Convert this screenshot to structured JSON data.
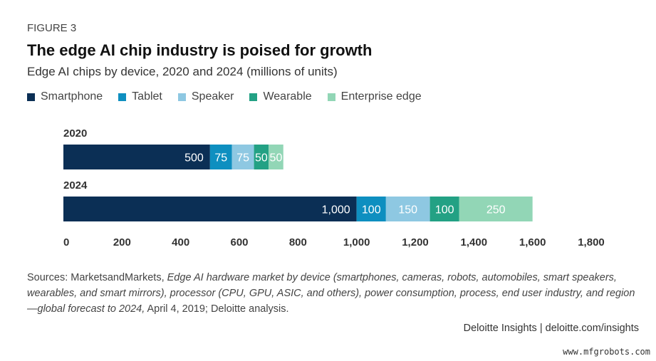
{
  "figure_label": "FIGURE 3",
  "watermark": "www.mfgrobots.com",
  "chart_data": {
    "type": "bar",
    "orientation": "horizontal",
    "stacked": true,
    "title": "The edge AI chip industry is poised for growth",
    "subtitle": "Edge AI chips by device, 2020 and 2024 (millions of units)",
    "categories": [
      "2020",
      "2024"
    ],
    "series": [
      {
        "name": "Smartphone",
        "color": "#0b2f55",
        "values": [
          500,
          1000
        ],
        "labels": [
          "500",
          "1,000"
        ]
      },
      {
        "name": "Tablet",
        "color": "#0e8fc0",
        "values": [
          75,
          100
        ],
        "labels": [
          "75",
          "100"
        ]
      },
      {
        "name": "Speaker",
        "color": "#8ec8e2",
        "values": [
          75,
          150
        ],
        "labels": [
          "75",
          "150"
        ]
      },
      {
        "name": "Wearable",
        "color": "#23a184",
        "values": [
          50,
          100
        ],
        "labels": [
          "50",
          "100"
        ]
      },
      {
        "name": "Enterprise edge",
        "color": "#92d6b6",
        "values": [
          50,
          250
        ],
        "labels": [
          "50",
          "250"
        ]
      }
    ],
    "xlim": [
      0,
      1800
    ],
    "xticks": [
      "0",
      "200",
      "400",
      "600",
      "800",
      "1,000",
      "1,200",
      "1,400",
      "1,600",
      "1,800"
    ],
    "grid": false,
    "legend_position": "top-left"
  },
  "source": {
    "prefix": "Sources: MarketsandMarkets, ",
    "italic": "Edge AI hardware market by device (smartphones, cameras, robots, automobiles, smart speakers, wearables, and smart mirrors), processor (CPU, GPU, ASIC, and others), power consumption, process, end user industry, and region—global forecast to 2024,",
    "suffix": " April 4, 2019; Deloitte analysis."
  },
  "credit": "Deloitte Insights | deloitte.com/insights"
}
